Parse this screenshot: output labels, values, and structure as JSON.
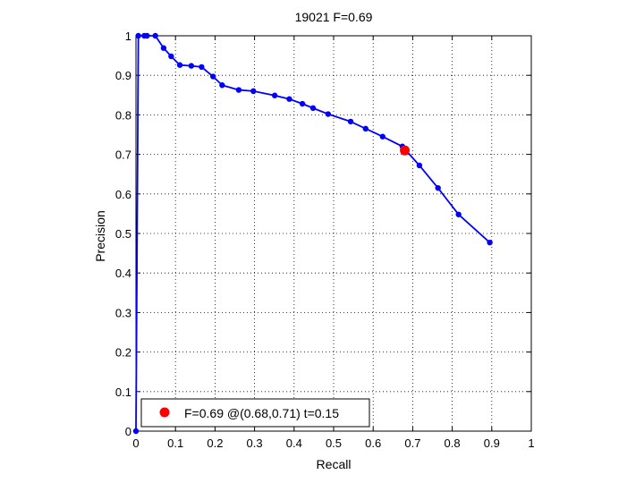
{
  "chart_data": {
    "type": "line",
    "title": "19021 F=0.69",
    "xlabel": "Recall",
    "ylabel": "Precision",
    "xlim": [
      0,
      1
    ],
    "ylim": [
      0,
      1
    ],
    "grid": "on",
    "xticks": [
      "0",
      "0.1",
      "0.2",
      "0.3",
      "0.4",
      "0.5",
      "0.6",
      "0.7",
      "0.8",
      "0.9",
      "1"
    ],
    "yticks": [
      "0",
      "0.1",
      "0.2",
      "0.3",
      "0.4",
      "0.5",
      "0.6",
      "0.7",
      "0.8",
      "0.9",
      "1"
    ],
    "legend": {
      "position": "bottom-left",
      "label": "F=0.69 @(0.68,0.71) t=0.15"
    },
    "series": [
      {
        "color": "#0000ff",
        "points": [
          [
            0.895,
            0.477
          ],
          [
            0.816,
            0.548
          ],
          [
            0.764,
            0.615
          ],
          [
            0.717,
            0.672
          ],
          [
            0.674,
            0.72
          ],
          [
            0.624,
            0.745
          ],
          [
            0.581,
            0.765
          ],
          [
            0.543,
            0.783
          ],
          [
            0.486,
            0.802
          ],
          [
            0.448,
            0.817
          ],
          [
            0.421,
            0.828
          ],
          [
            0.388,
            0.84
          ],
          [
            0.351,
            0.849
          ],
          [
            0.297,
            0.86
          ],
          [
            0.26,
            0.863
          ],
          [
            0.218,
            0.875
          ],
          [
            0.195,
            0.897
          ],
          [
            0.166,
            0.921
          ],
          [
            0.14,
            0.924
          ],
          [
            0.111,
            0.926
          ],
          [
            0.089,
            0.948
          ],
          [
            0.07,
            0.969
          ],
          [
            0.049,
            1.0
          ],
          [
            0.028,
            1.0
          ],
          [
            0.021,
            1.0
          ],
          [
            0.006,
            1.0
          ],
          [
            0.0,
            0.0
          ]
        ]
      }
    ],
    "highlight": {
      "x": 0.68,
      "y": 0.71,
      "color": "#ff0000"
    }
  }
}
